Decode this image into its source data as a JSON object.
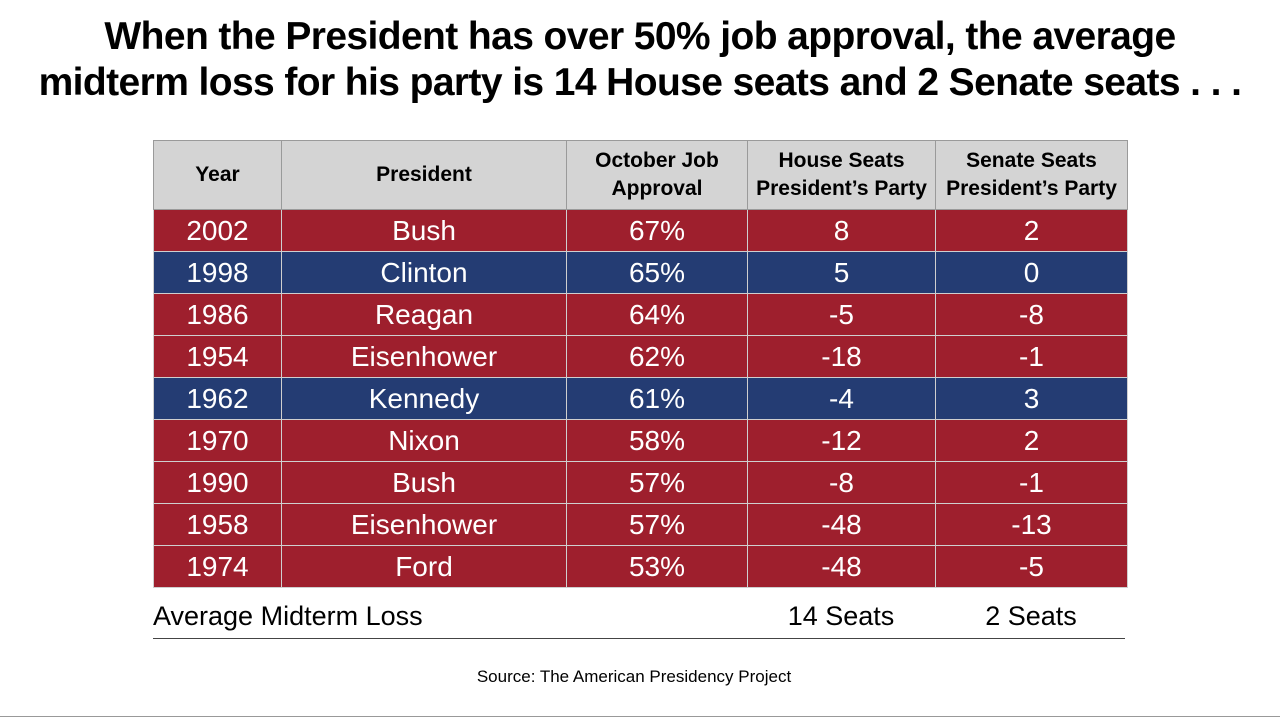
{
  "title": {
    "line1": "When the President has over 50% job approval, the average",
    "line2": "midterm loss for his party is 14 House seats and 2 Senate seats . . ."
  },
  "table": {
    "headers": {
      "year": "Year",
      "president": "President",
      "approval_1": "October Job",
      "approval_2": "Approval",
      "house_1": "House Seats",
      "house_2": "President’s Party",
      "senate_1": "Senate Seats",
      "senate_2": "President’s Party"
    },
    "rows": [
      {
        "year": "2002",
        "president": "Bush",
        "approval": "67%",
        "house": "8",
        "senate": "2",
        "party": "rep"
      },
      {
        "year": "1998",
        "president": "Clinton",
        "approval": "65%",
        "house": "5",
        "senate": "0",
        "party": "dem"
      },
      {
        "year": "1986",
        "president": "Reagan",
        "approval": "64%",
        "house": "-5",
        "senate": "-8",
        "party": "rep"
      },
      {
        "year": "1954",
        "president": "Eisenhower",
        "approval": "62%",
        "house": "-18",
        "senate": "-1",
        "party": "rep"
      },
      {
        "year": "1962",
        "president": "Kennedy",
        "approval": "61%",
        "house": "-4",
        "senate": "3",
        "party": "dem"
      },
      {
        "year": "1970",
        "president": "Nixon",
        "approval": "58%",
        "house": "-12",
        "senate": "2",
        "party": "rep"
      },
      {
        "year": "1990",
        "president": "Bush",
        "approval": "57%",
        "house": "-8",
        "senate": "-1",
        "party": "rep"
      },
      {
        "year": "1958",
        "president": "Eisenhower",
        "approval": "57%",
        "house": "-48",
        "senate": "-13",
        "party": "rep"
      },
      {
        "year": "1974",
        "president": "Ford",
        "approval": "53%",
        "house": "-48",
        "senate": "-5",
        "party": "rep"
      }
    ],
    "colors": {
      "rep": "#9e1f2d",
      "dem": "#243c73",
      "header": "#d4d4d4"
    }
  },
  "average": {
    "label": "Average Midterm Loss",
    "house": "14 Seats",
    "senate": "2 Seats"
  },
  "source": "Source: The American Presidency Project"
}
